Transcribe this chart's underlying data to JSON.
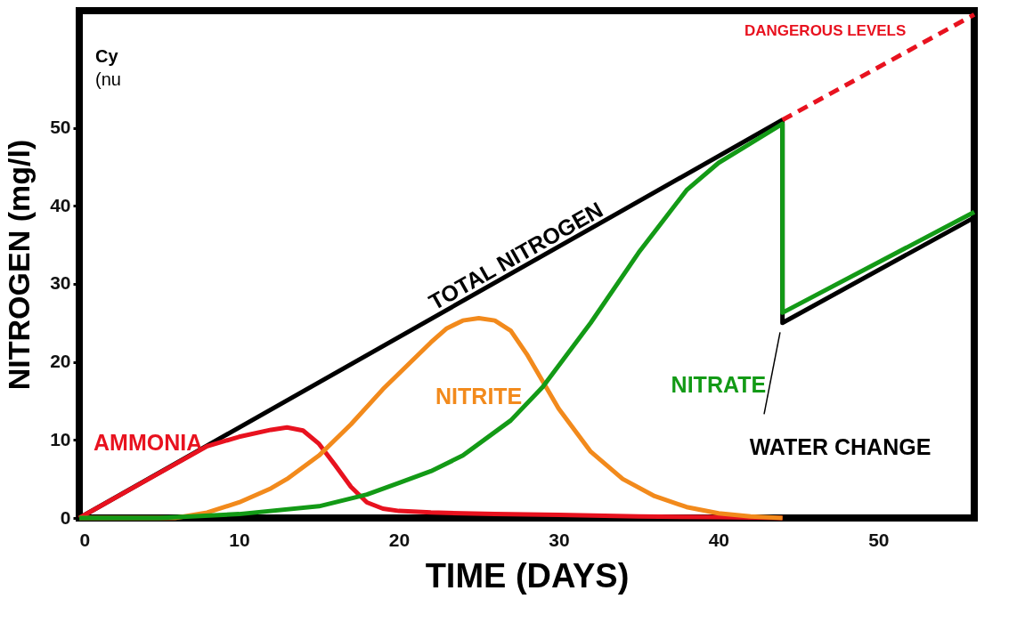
{
  "chart_data": {
    "type": "line",
    "xlabel": "TIME (DAYS)",
    "ylabel": "NITROGEN (mg/l)",
    "xlim": [
      0,
      56
    ],
    "ylim": [
      0,
      65
    ],
    "xticks": [
      0,
      10,
      20,
      30,
      40,
      50
    ],
    "yticks": [
      0,
      10,
      20,
      30,
      40,
      50
    ],
    "grid": false,
    "marker": "none",
    "series": [
      {
        "name": "TOTAL NITROGEN",
        "color": "#000000",
        "x": [
          0,
          44,
          44,
          56
        ],
        "values": [
          0,
          51,
          25,
          38.5
        ]
      },
      {
        "name": "DANGEROUS LEVELS",
        "color": "#e8121f",
        "line_style": "dashed",
        "x": [
          44,
          56
        ],
        "values": [
          51,
          64.5
        ]
      },
      {
        "name": "AMMONIA",
        "color": "#e8121f",
        "x": [
          0,
          4,
          8,
          10,
          12,
          13,
          14,
          15,
          16,
          17,
          18,
          19,
          20,
          22,
          26,
          30,
          35,
          40,
          44
        ],
        "values": [
          0,
          4.6,
          9.2,
          10.4,
          11.3,
          11.6,
          11.2,
          9.5,
          6.8,
          4.0,
          2.0,
          1.2,
          0.9,
          0.7,
          0.5,
          0.4,
          0.2,
          0.1,
          0
        ]
      },
      {
        "name": "NITRITE",
        "color": "#f28a1c",
        "x": [
          0,
          6,
          8,
          10,
          12,
          13,
          15,
          17,
          19,
          20,
          22,
          23,
          24,
          25,
          26,
          27,
          28,
          29,
          30,
          32,
          34,
          36,
          38,
          40,
          42,
          44
        ],
        "values": [
          0,
          0,
          0.7,
          2,
          3.8,
          5,
          8,
          12,
          16.5,
          18.5,
          22.5,
          24.3,
          25.3,
          25.6,
          25.3,
          24,
          21,
          17.5,
          14,
          8.5,
          5,
          2.8,
          1.4,
          0.6,
          0.2,
          0
        ]
      },
      {
        "name": "NITRATE",
        "color": "#139a16",
        "x": [
          0,
          5,
          10,
          15,
          18,
          20,
          22,
          24,
          27,
          29,
          32,
          35,
          38,
          40,
          42,
          44,
          44,
          56
        ],
        "values": [
          0,
          0,
          0.5,
          1.5,
          3,
          4.5,
          6,
          8,
          12.5,
          16.8,
          25,
          34,
          42,
          45.5,
          48,
          50.5,
          26.3,
          39.2
        ]
      }
    ],
    "annotations": [
      "Cy",
      "(nu",
      "WATER CHANGE"
    ]
  }
}
